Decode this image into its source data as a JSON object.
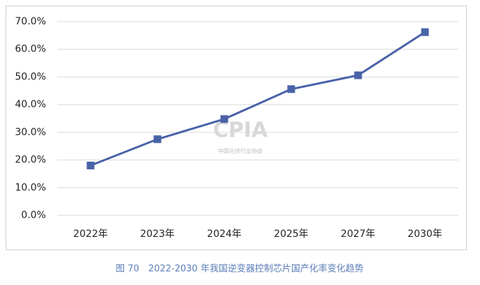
{
  "chart_data": {
    "type": "line",
    "caption": "图 70　2022-2030 年我国逆变器控制芯片国产化率变化趋势",
    "watermark": [
      "CPIA",
      "中国光伏行业协会"
    ],
    "categories": [
      "2022年",
      "2023年",
      "2024年",
      "2025年",
      "2027年",
      "2030年"
    ],
    "series": [
      {
        "color": "#4a63a8",
        "values": [
          18.0,
          27.5,
          34.8,
          45.6,
          50.6,
          66.2
        ]
      }
    ],
    "ylim": [
      0,
      70
    ],
    "yticks": [
      {
        "value": 0,
        "label": "0.0%"
      },
      {
        "value": 10,
        "label": "10.0%"
      },
      {
        "value": 20,
        "label": "20.0%"
      },
      {
        "value": 30,
        "label": "30.0%"
      },
      {
        "value": 40,
        "label": "40.0%"
      },
      {
        "value": 50,
        "label": "50.0%"
      },
      {
        "value": 60,
        "label": "60.0%"
      },
      {
        "value": 70,
        "label": "70.0%"
      }
    ],
    "grid": true
  }
}
